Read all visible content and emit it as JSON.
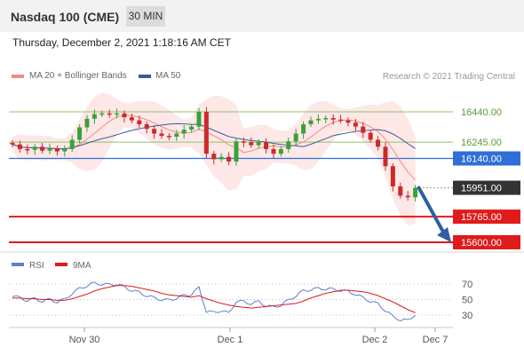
{
  "header": {
    "title": "Nasdaq 100 (CME)",
    "timeframe": "30 MIN"
  },
  "datetime": "Thursday, December 2, 2021 1:18:16 AM CET",
  "legend": {
    "ma20": "MA 20 + Bollinger Bands",
    "ma50": "MA 50",
    "credit": "Research © 2021 Trading Central"
  },
  "colors": {
    "ma20": "#f28b82",
    "ma50": "#3a5a9a",
    "support": "#e01b1b",
    "pivot": "#2f6fd6",
    "resistance": "#8dc46a",
    "arrow": "#2f5f9e",
    "rsi": "#5b7fd4",
    "rsi_ma": "#e01b1b",
    "bands": "#fde3e3"
  },
  "chart_data": [
    {
      "type": "candlestick",
      "instrument": "Nasdaq 100 (CME)",
      "timeframe": "30 MIN",
      "x_ticks": [
        "Nov 30",
        "Dec 1",
        "Dec 2",
        "Dec 7"
      ],
      "levels": [
        {
          "label": "16440.00",
          "value": 16440.0,
          "kind": "resistance"
        },
        {
          "label": "16245.00",
          "value": 16245.0,
          "kind": "resistance"
        },
        {
          "label": "16140.00",
          "value": 16140.0,
          "kind": "pivot"
        },
        {
          "label": "15951.00",
          "value": 15951.0,
          "kind": "last-price"
        },
        {
          "label": "15765.00",
          "value": 15765.0,
          "kind": "support"
        },
        {
          "label": "15600.00",
          "value": 15600.0,
          "kind": "support"
        }
      ],
      "close_path": [
        16230,
        16200,
        16195,
        16215,
        16190,
        16205,
        16185,
        16200,
        16260,
        16340,
        16395,
        16425,
        16430,
        16425,
        16430,
        16405,
        16385,
        16360,
        16330,
        16300,
        16285,
        16280,
        16300,
        16325,
        16345,
        16440,
        16170,
        16135,
        16150,
        16120,
        16250,
        16245,
        16225,
        16245,
        16200,
        16170,
        16200,
        16250,
        16300,
        16360,
        16385,
        16395,
        16400,
        16390,
        16385,
        16370,
        16345,
        16305,
        16260,
        16215,
        16090,
        15960,
        15900,
        15890,
        15951
      ],
      "projection": {
        "from": 15951,
        "to": 15600
      }
    },
    {
      "type": "line",
      "name": "RSI",
      "y_ticks": [
        70,
        50,
        30
      ],
      "ylim": [
        10,
        90
      ],
      "series": [
        {
          "name": "RSI",
          "values": [
            55,
            52,
            49,
            51,
            48,
            50,
            47,
            50,
            58,
            64,
            68,
            71,
            70,
            69,
            70,
            66,
            62,
            59,
            55,
            52,
            50,
            49,
            52,
            55,
            57,
            65,
            35,
            33,
            36,
            32,
            48,
            47,
            45,
            47,
            42,
            40,
            43,
            49,
            55,
            61,
            63,
            64,
            64,
            63,
            62,
            60,
            57,
            52,
            48,
            44,
            36,
            28,
            24,
            23,
            31
          ]
        },
        {
          "name": "9MA",
          "values": [
            52,
            52,
            51,
            51,
            50,
            50,
            49,
            49,
            51,
            54,
            57,
            61,
            64,
            66,
            68,
            68,
            67,
            65,
            63,
            61,
            58,
            56,
            55,
            54,
            53,
            55,
            51,
            48,
            45,
            43,
            41,
            40,
            39,
            40,
            41,
            42,
            43,
            44,
            45,
            48,
            52,
            55,
            58,
            60,
            62,
            62,
            61,
            60,
            58,
            55,
            51,
            47,
            42,
            37,
            33
          ]
        }
      ]
    }
  ]
}
